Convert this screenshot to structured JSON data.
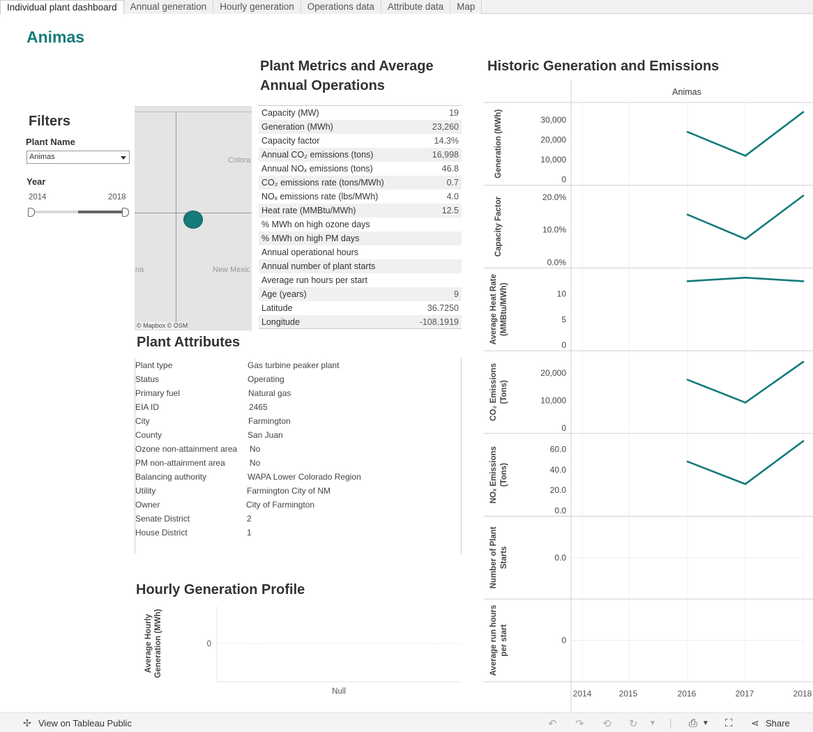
{
  "tabs": [
    {
      "label": "Individual plant dashboard",
      "active": true
    },
    {
      "label": "Annual generation",
      "active": false
    },
    {
      "label": "Hourly generation",
      "active": false
    },
    {
      "label": "Operations data",
      "active": false
    },
    {
      "label": "Attribute data",
      "active": false
    },
    {
      "label": "Map",
      "active": false
    }
  ],
  "plant_title": "Animas",
  "filters": {
    "title": "Filters",
    "plant_name_label": "Plant Name",
    "plant_name_value": "Animas",
    "year_label": "Year",
    "year_min": "2014",
    "year_max": "2018"
  },
  "map": {
    "labels": [
      "Colora",
      "New Mexic",
      "na"
    ],
    "credit": "© Mapbox  © OSM",
    "accent": "#147a7a"
  },
  "metrics": {
    "title_line1": "Plant Metrics and Average",
    "title_line2": "Annual Operations",
    "rows": [
      {
        "label": "Capacity (MW)",
        "value": "19"
      },
      {
        "label": "Generation (MWh)",
        "value": "23,260"
      },
      {
        "label": "Capacity factor",
        "value": "14.3%"
      },
      {
        "label": "Annual CO₂ emissions (tons)",
        "value": "16,998"
      },
      {
        "label": "Annual NOₓ emissions (tons)",
        "value": "46.8"
      },
      {
        "label": "CO₂ emissions rate (tons/MWh)",
        "value": "0.7"
      },
      {
        "label": "NOₓ emissions rate (lbs/MWh)",
        "value": "4.0"
      },
      {
        "label": "Heat rate (MMBtu/MWh)",
        "value": "12.5"
      },
      {
        "label": "% MWh on high ozone days",
        "value": ""
      },
      {
        "label": "% MWh on high PM days",
        "value": ""
      },
      {
        "label": "Annual operational hours",
        "value": ""
      },
      {
        "label": "Annual number of plant starts",
        "value": ""
      },
      {
        "label": "Average run hours per start",
        "value": ""
      },
      {
        "label": "Age (years)",
        "value": "9"
      },
      {
        "label": "Latitude",
        "value": "36.7250"
      },
      {
        "label": "Longitude",
        "value": "-108.1919"
      }
    ]
  },
  "attributes": {
    "title": "Plant Attributes",
    "rows": [
      {
        "label": "Plant type",
        "value": "Gas turbine peaker plant"
      },
      {
        "label": "Status",
        "value": "Operating"
      },
      {
        "label": "Primary fuel",
        "value": "Natural gas"
      },
      {
        "label": "EIA ID",
        "value": "2465"
      },
      {
        "label": "City",
        "value": "Farmington"
      },
      {
        "label": "County",
        "value": "San Juan"
      },
      {
        "label": "Ozone non-attainment area",
        "value": "No"
      },
      {
        "label": "PM non-attainment area",
        "value": "No"
      },
      {
        "label": "Balancing authority",
        "value": "WAPA Lower Colorado Region"
      },
      {
        "label": "Utility",
        "value": "Farmington City of NM"
      },
      {
        "label": "Owner",
        "value": "City of Farmington"
      },
      {
        "label": "Senate District",
        "value": "2"
      },
      {
        "label": "House District",
        "value": "1"
      }
    ]
  },
  "hourly": {
    "title": "Hourly Generation Profile",
    "ylabel_line1": "Average Hourly",
    "ylabel_line2": "Generation (MWh)",
    "ytick": "0",
    "xtick": "Null"
  },
  "historic": {
    "title": "Historic Generation and Emissions",
    "column_header": "Animas"
  },
  "chart_data": {
    "type": "line",
    "title": "Historic Generation and Emissions",
    "color": "#147a7a",
    "x": [
      "2014",
      "2015",
      "2016",
      "2017",
      "2018"
    ],
    "panels": [
      {
        "ylabel_lines": [
          "Generation (MWh)"
        ],
        "ymin": 0,
        "ymax": 36000,
        "ticks": [
          0,
          10000,
          20000,
          30000
        ],
        "tick_labels": [
          "0",
          "10,000",
          "20,000",
          "30,000"
        ],
        "points": [
          [
            2016,
            24000
          ],
          [
            2017,
            12000
          ],
          [
            2018,
            34000
          ]
        ]
      },
      {
        "ylabel_lines": [
          "Capacity Factor"
        ],
        "ymin": 0,
        "ymax": 0.22,
        "ticks": [
          0,
          0.1,
          0.2
        ],
        "tick_labels": [
          "0.0%",
          "10.0%",
          "20.0%"
        ],
        "points": [
          [
            2016,
            0.147
          ],
          [
            2017,
            0.072
          ],
          [
            2018,
            0.205
          ]
        ]
      },
      {
        "ylabel_lines": [
          "Average Heat Rate",
          "(MMBtu/MWh)"
        ],
        "ymin": 0,
        "ymax": 14,
        "ticks": [
          0,
          5,
          10
        ],
        "tick_labels": [
          "0",
          "5",
          "10"
        ],
        "points": [
          [
            2016,
            12.5
          ],
          [
            2017,
            13.2
          ],
          [
            2018,
            12.5
          ]
        ]
      },
      {
        "ylabel_lines": [
          "CO₂ Emissions",
          "(Tons)"
        ],
        "ymin": 0,
        "ymax": 26000,
        "ticks": [
          0,
          10000,
          20000
        ],
        "tick_labels": [
          "0",
          "10,000",
          "20,000"
        ],
        "points": [
          [
            2016,
            17500
          ],
          [
            2017,
            9200
          ],
          [
            2018,
            24000
          ]
        ]
      },
      {
        "ylabel_lines": [
          "NOₓ Emissions",
          "(Tons)"
        ],
        "ymin": 0,
        "ymax": 70,
        "ticks": [
          0,
          20,
          40,
          60
        ],
        "tick_labels": [
          "0.0",
          "20.0",
          "40.0",
          "60.0"
        ],
        "points": [
          [
            2016,
            48
          ],
          [
            2017,
            26
          ],
          [
            2018,
            68
          ]
        ]
      },
      {
        "ylabel_lines": [
          "Number of Plant",
          "Starts"
        ],
        "ymin": -1,
        "ymax": 1,
        "ticks": [
          0
        ],
        "tick_labels": [
          "0.0"
        ],
        "points": []
      },
      {
        "ylabel_lines": [
          "Average run hours",
          "per start"
        ],
        "ymin": -1,
        "ymax": 1,
        "ticks": [
          0
        ],
        "tick_labels": [
          "0"
        ],
        "points": []
      }
    ]
  },
  "bottom_bar": {
    "view_label": "View on Tableau Public",
    "share_label": "Share"
  }
}
